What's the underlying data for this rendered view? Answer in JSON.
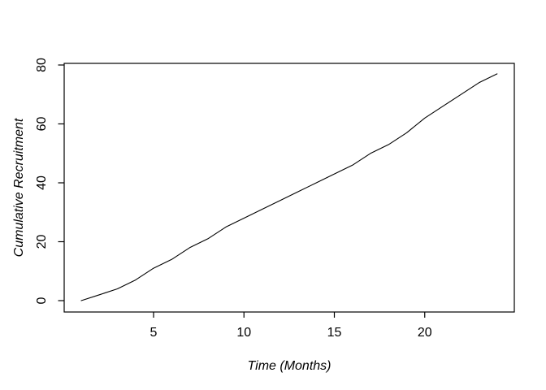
{
  "chart_data": {
    "type": "line",
    "title": "",
    "xlabel": "Time (Months)",
    "ylabel": "Cumulative Recruitment",
    "x": [
      1,
      2,
      3,
      4,
      5,
      6,
      7,
      8,
      9,
      10,
      11,
      12,
      13,
      14,
      15,
      16,
      17,
      18,
      19,
      20,
      21,
      22,
      23,
      24
    ],
    "series": [
      {
        "name": "Cumulative Recruitment",
        "values": [
          0,
          2,
          4,
          7,
          11,
          14,
          18,
          21,
          25,
          28,
          31,
          34,
          37,
          40,
          43,
          46,
          50,
          53,
          57,
          62,
          66,
          70,
          74,
          77
        ]
      }
    ],
    "x_ticks": [
      5,
      10,
      15,
      20
    ],
    "y_ticks": [
      0,
      20,
      40,
      60,
      80
    ],
    "xlim": [
      1,
      24
    ],
    "ylim": [
      0,
      80
    ],
    "grid": false,
    "legend": "none",
    "line_color": "#000000",
    "axis_color": "#000000",
    "background_color": "#ffffff"
  }
}
